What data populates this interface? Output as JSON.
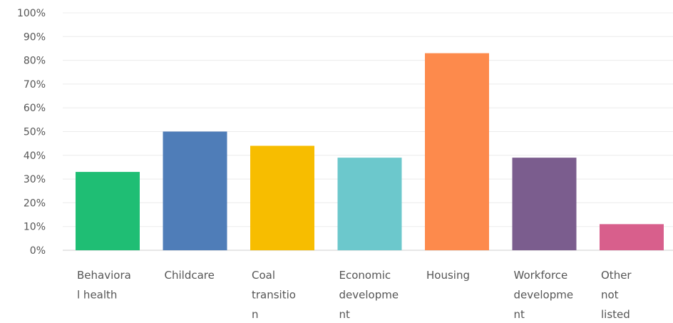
{
  "chart_data": {
    "type": "bar",
    "categories": [
      [
        "Behaviora",
        "l health"
      ],
      [
        "Childcare"
      ],
      [
        "Coal",
        "transitio",
        "n"
      ],
      [
        "Economic",
        "developme",
        "nt"
      ],
      [
        "Housing"
      ],
      [
        "Workforce",
        "developme",
        "nt"
      ],
      [
        "Other",
        "not",
        "listed"
      ]
    ],
    "values": [
      33,
      50,
      44,
      39,
      83,
      39,
      11
    ],
    "colors": [
      "#1fbe74",
      "#4f7db8",
      "#f7bd00",
      "#6cc8cc",
      "#fd8a4c",
      "#7b5d8e",
      "#d85f8c"
    ],
    "y_ticks": [
      "0%",
      "10%",
      "20%",
      "30%",
      "40%",
      "50%",
      "60%",
      "70%",
      "80%",
      "90%",
      "100%"
    ],
    "ylim": [
      0,
      100
    ],
    "grid": true,
    "title": "",
    "xlabel": "",
    "ylabel": ""
  }
}
